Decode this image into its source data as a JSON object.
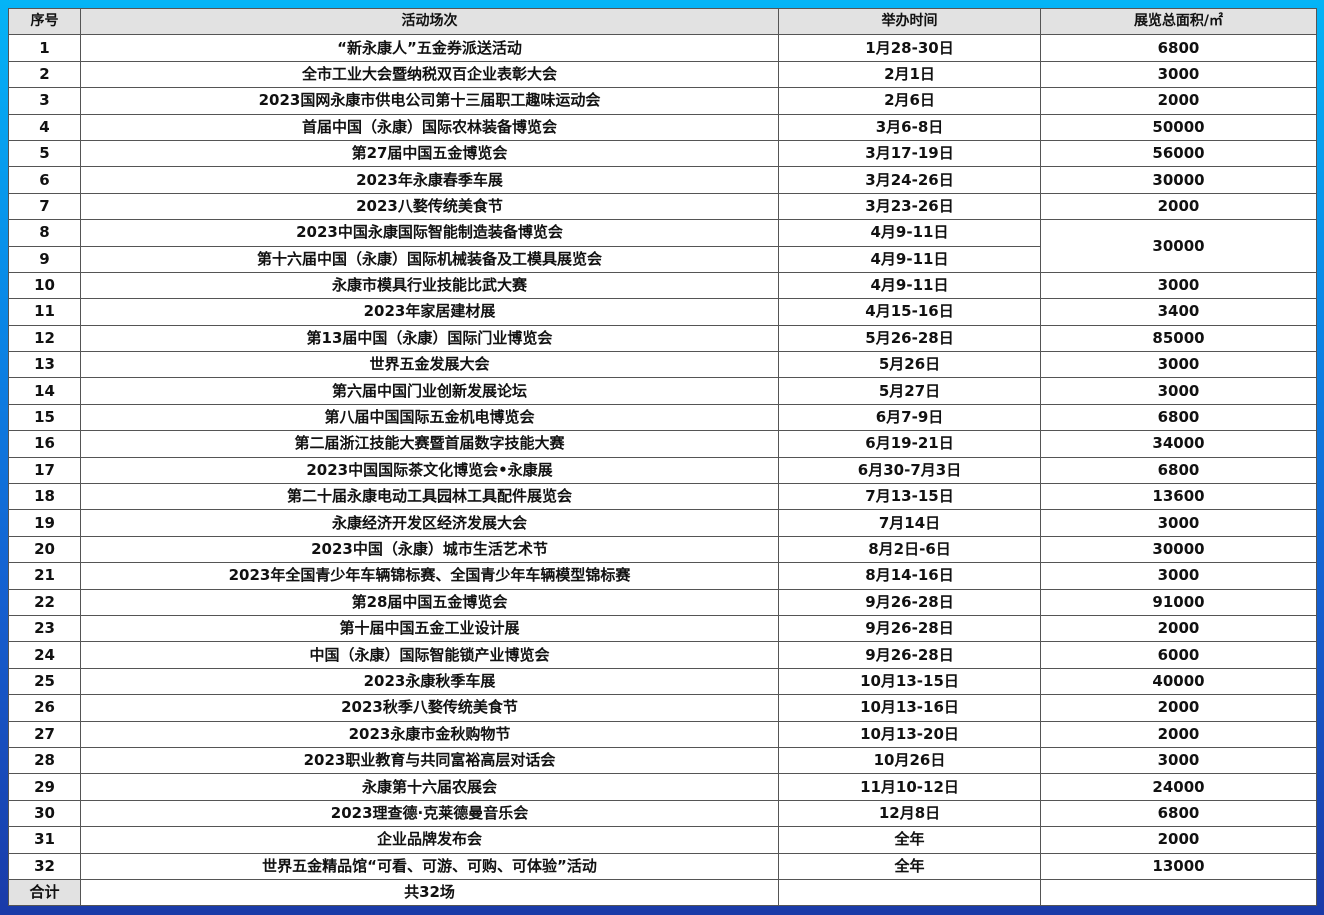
{
  "header": {
    "no": "序号",
    "event": "活动场次",
    "time": "举办时间",
    "area": "展览总面积/㎡"
  },
  "rows": [
    {
      "no": "1",
      "event": "“新永康人”五金券派送活动",
      "time": "1月28-30日",
      "area": "6800"
    },
    {
      "no": "2",
      "event": "全市工业大会暨纳税双百企业表彰大会",
      "time": "2月1日",
      "area": "3000"
    },
    {
      "no": "3",
      "event": "2023国网永康市供电公司第十三届职工趣味运动会",
      "time": "2月6日",
      "area": "2000"
    },
    {
      "no": "4",
      "event": "首届中国（永康）国际农林装备博览会",
      "time": "3月6-8日",
      "area": "50000"
    },
    {
      "no": "5",
      "event": "第27届中国五金博览会",
      "time": "3月17-19日",
      "area": "56000"
    },
    {
      "no": "6",
      "event": "2023年永康春季车展",
      "time": "3月24-26日",
      "area": "30000"
    },
    {
      "no": "7",
      "event": "2023八婺传统美食节",
      "time": "3月23-26日",
      "area": "2000"
    },
    {
      "no": "8",
      "event": "2023中国永康国际智能制造装备博览会",
      "time": "4月9-11日",
      "area": "30000"
    },
    {
      "no": "9",
      "event": "第十六届中国（永康）国际机械装备及工模具展览会",
      "time": "4月9-11日",
      "area": ""
    },
    {
      "no": "10",
      "event": "永康市模具行业技能比武大赛",
      "time": "4月9-11日",
      "area": "3000"
    },
    {
      "no": "11",
      "event": "2023年家居建材展",
      "time": "4月15-16日",
      "area": "3400"
    },
    {
      "no": "12",
      "event": "第13届中国（永康）国际门业博览会",
      "time": "5月26-28日",
      "area": "85000"
    },
    {
      "no": "13",
      "event": "世界五金发展大会",
      "time": "5月26日",
      "area": "3000"
    },
    {
      "no": "14",
      "event": "第六届中国门业创新发展论坛",
      "time": "5月27日",
      "area": "3000"
    },
    {
      "no": "15",
      "event": "第八届中国国际五金机电博览会",
      "time": "6月7-9日",
      "area": "6800"
    },
    {
      "no": "16",
      "event": "第二届浙江技能大赛暨首届数字技能大赛",
      "time": "6月19-21日",
      "area": "34000"
    },
    {
      "no": "17",
      "event": "2023中国国际茶文化博览会•永康展",
      "time": "6月30-7月3日",
      "area": "6800"
    },
    {
      "no": "18",
      "event": "第二十届永康电动工具园林工具配件展览会",
      "time": "7月13-15日",
      "area": "13600"
    },
    {
      "no": "19",
      "event": "永康经济开发区经济发展大会",
      "time": "7月14日",
      "area": "3000"
    },
    {
      "no": "20",
      "event": "2023中国（永康）城市生活艺术节",
      "time": "8月2日-6日",
      "area": "30000"
    },
    {
      "no": "21",
      "event": "2023年全国青少年车辆锦标赛、全国青少年车辆模型锦标赛",
      "time": "8月14-16日",
      "area": "3000"
    },
    {
      "no": "22",
      "event": "第28届中国五金博览会",
      "time": "9月26-28日",
      "area": "91000"
    },
    {
      "no": "23",
      "event": "第十届中国五金工业设计展",
      "time": "9月26-28日",
      "area": "2000"
    },
    {
      "no": "24",
      "event": "中国（永康）国际智能锁产业博览会",
      "time": "9月26-28日",
      "area": "6000"
    },
    {
      "no": "25",
      "event": "2023永康秋季车展",
      "time": "10月13-15日",
      "area": "40000"
    },
    {
      "no": "26",
      "event": "2023秋季八婺传统美食节",
      "time": "10月13-16日",
      "area": "2000"
    },
    {
      "no": "27",
      "event": "2023永康市金秋购物节",
      "time": "10月13-20日",
      "area": "2000"
    },
    {
      "no": "28",
      "event": "2023职业教育与共同富裕高层对话会",
      "time": "10月26日",
      "area": "3000"
    },
    {
      "no": "29",
      "event": "永康第十六届农展会",
      "time": "11月10-12日",
      "area": "24000"
    },
    {
      "no": "30",
      "event": "2023理查德·克莱德曼音乐会",
      "time": "12月8日",
      "area": "6800"
    },
    {
      "no": "31",
      "event": "企业品牌发布会",
      "time": "全年",
      "area": "2000"
    },
    {
      "no": "32",
      "event": "世界五金精品馆“可看、可游、可购、可体验”活动",
      "time": "全年",
      "area": "13000"
    }
  ],
  "total": {
    "label": "合计",
    "event": "共32场",
    "time": "",
    "area": ""
  }
}
